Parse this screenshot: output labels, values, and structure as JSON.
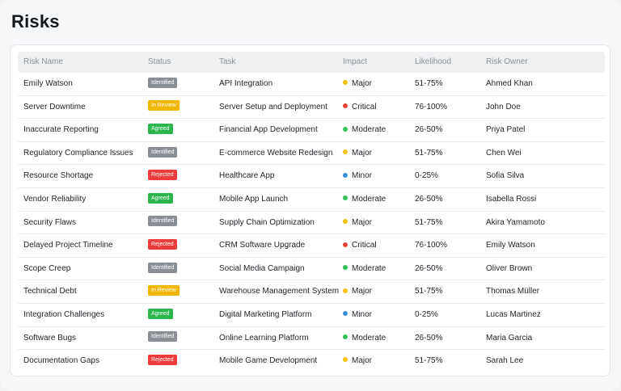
{
  "page": {
    "title": "Risks"
  },
  "table": {
    "columns": {
      "name": "Risk Name",
      "status": "Status",
      "task": "Task",
      "impact": "Impact",
      "likelihood": "Likelihood",
      "owner": "Risk Owner"
    },
    "status_colors": {
      "Identified": "#8a8f96",
      "In Review": "#f2b705",
      "Agreed": "#2bb54f",
      "Rejected": "#ee3b3b"
    },
    "impact_colors": {
      "Major": "#f4c20d",
      "Critical": "#ea4335",
      "Moderate": "#34c15a",
      "Minor": "#3b8fd9"
    },
    "rows": [
      {
        "name": "Emily Watson",
        "status": "Identified",
        "task": "API Integration",
        "impact": "Major",
        "likelihood": "51-75%",
        "owner": "Ahmed Khan"
      },
      {
        "name": "Server Downtime",
        "status": "In Review",
        "task": "Server Setup and Deployment",
        "impact": "Critical",
        "likelihood": "76-100%",
        "owner": "John Doe"
      },
      {
        "name": "Inaccurate Reporting",
        "status": "Agreed",
        "task": "Financial App Development",
        "impact": "Moderate",
        "likelihood": "26-50%",
        "owner": "Priya Patel"
      },
      {
        "name": "Regulatory Compliance Issues",
        "status": "Identified",
        "task": "E-commerce Website Redesign",
        "impact": "Major",
        "likelihood": "51-75%",
        "owner": "Chen Wei"
      },
      {
        "name": "Resource Shortage",
        "status": "Rejected",
        "task": "Healthcare App",
        "impact": "Minor",
        "likelihood": "0-25%",
        "owner": "Sofia Silva"
      },
      {
        "name": "Vendor Reliability",
        "status": "Agreed",
        "task": "Mobile App Launch",
        "impact": "Moderate",
        "likelihood": "26-50%",
        "owner": "Isabella Rossi"
      },
      {
        "name": "Security Flaws",
        "status": "Identified",
        "task": "Supply Chain Optimization",
        "impact": "Major",
        "likelihood": "51-75%",
        "owner": "Akira Yamamoto"
      },
      {
        "name": "Delayed Project Timeline",
        "status": "Rejected",
        "task": "CRM Software Upgrade",
        "impact": "Critical",
        "likelihood": "76-100%",
        "owner": "Emily Watson"
      },
      {
        "name": "Scope Creep",
        "status": "Identified",
        "task": "Social Media Campaign",
        "impact": "Moderate",
        "likelihood": "26-50%",
        "owner": "Oliver Brown"
      },
      {
        "name": "Technical Debt",
        "status": "In Review",
        "task": "Warehouse Management System",
        "impact": "Major",
        "likelihood": "51-75%",
        "owner": "Thomas Müller"
      },
      {
        "name": "Integration Challenges",
        "status": "Agreed",
        "task": "Digital Marketing Platform",
        "impact": "Minor",
        "likelihood": "0-25%",
        "owner": "Lucas Martinez"
      },
      {
        "name": "Software Bugs",
        "status": "Identified",
        "task": "Online Learning Platform",
        "impact": "Moderate",
        "likelihood": "26-50%",
        "owner": "Maria Garcia"
      },
      {
        "name": "Documentation Gaps",
        "status": "Rejected",
        "task": "Mobile Game Development",
        "impact": "Major",
        "likelihood": "51-75%",
        "owner": "Sarah Lee"
      }
    ]
  }
}
